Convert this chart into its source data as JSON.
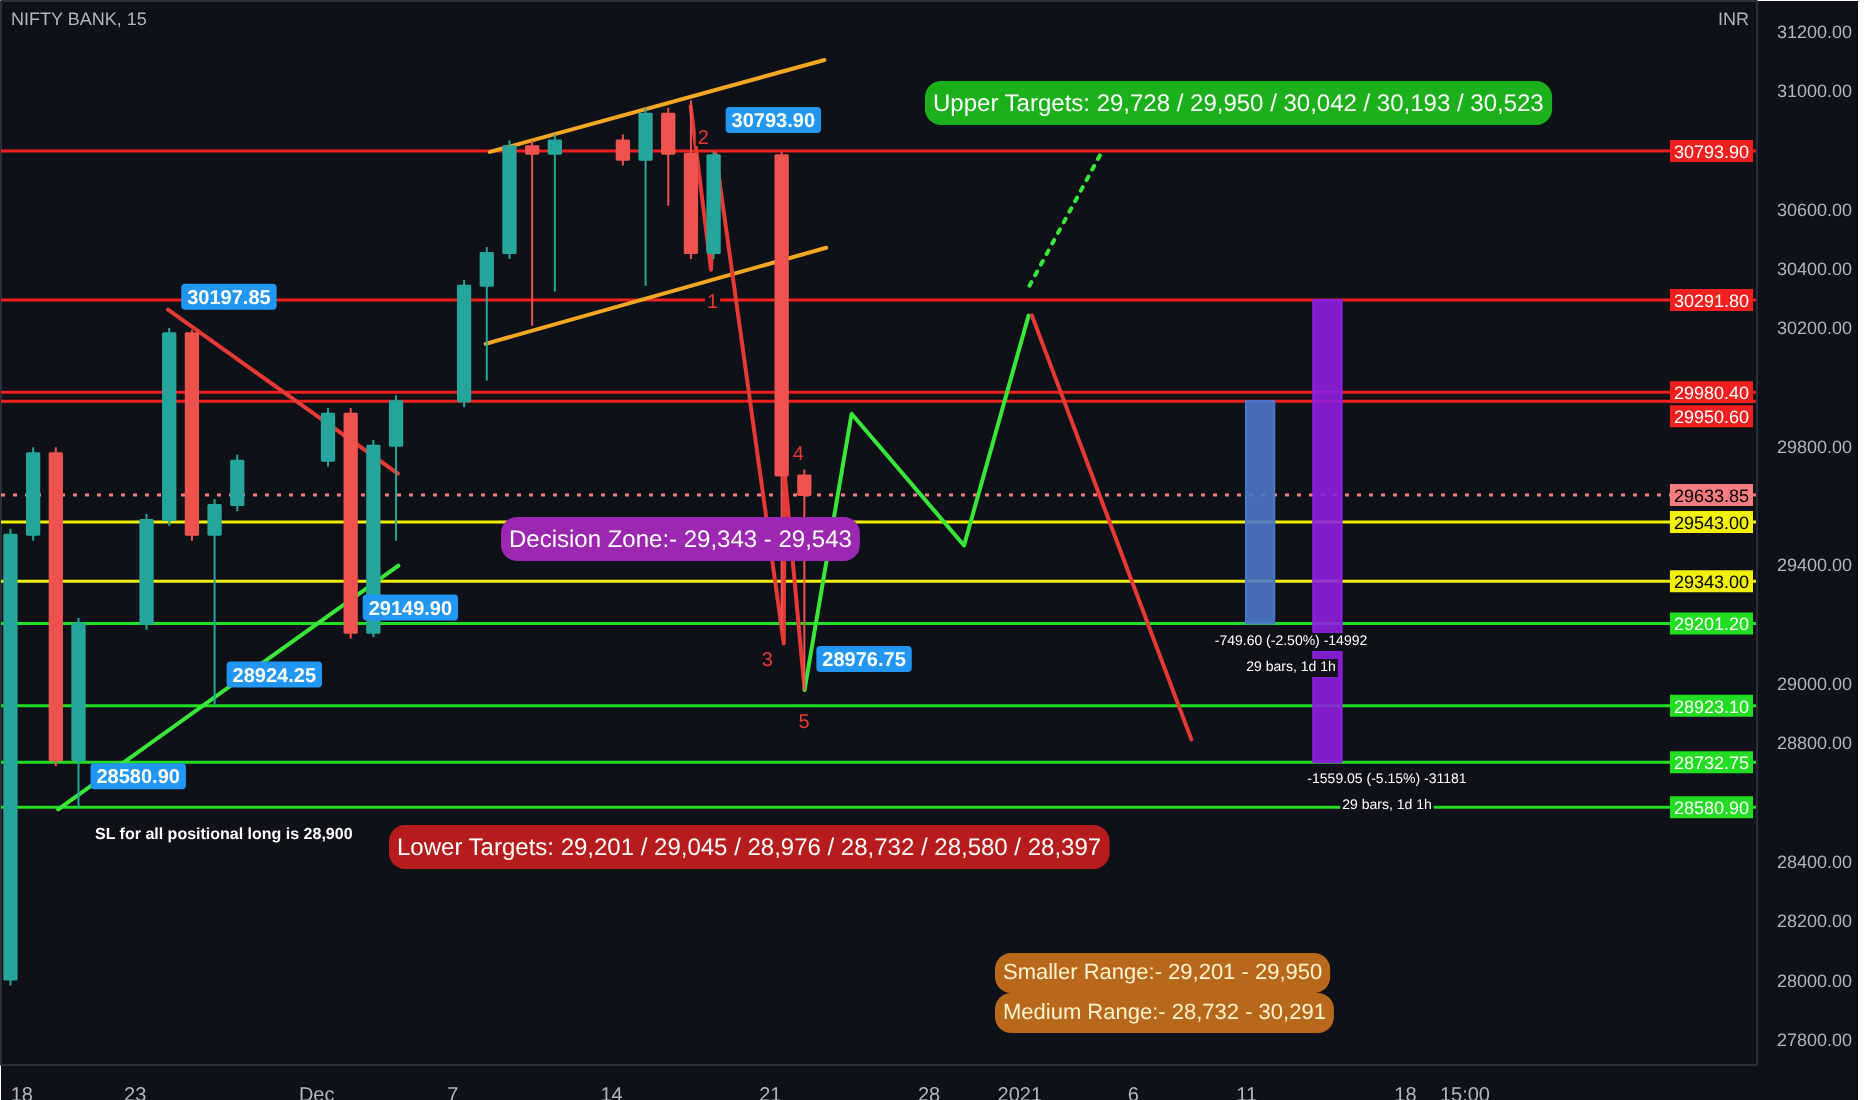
{
  "chart_data": {
    "type": "candlestick",
    "title": "NIFTY BANK, 15",
    "ylabel": "INR",
    "x": [
      "2020-11-17T12:00",
      "2020-11-18T12:00",
      "2020-11-19T12:00",
      "2020-11-20T12:00",
      "2020-11-23T12:00",
      "2020-11-24T12:00",
      "2020-11-25T12:00",
      "2020-11-26T12:00",
      "2020-11-27T12:00",
      "2020-12-01T12:00",
      "2020-12-02T12:00",
      "2020-12-03T12:00",
      "2020-12-04T12:00",
      "2020-12-07T12:00",
      "2020-12-08T12:00",
      "2020-12-09T12:00",
      "2020-12-10T12:00",
      "2020-12-11T12:00",
      "2020-12-14T12:00",
      "2020-12-15T12:00",
      "2020-12-16T12:00",
      "2020-12-17T12:00",
      "2020-12-18T12:00",
      "2020-12-21T12:00",
      "2020-12-22T12:00"
    ],
    "ohlc": [
      [
        28000,
        29520,
        27980,
        29500
      ],
      [
        29500,
        29795,
        29480,
        29775
      ],
      [
        29775,
        29795,
        28720,
        28740
      ],
      [
        28740,
        29220,
        28580.9,
        29200
      ],
      [
        29200,
        29570,
        29180,
        29550
      ],
      [
        29550,
        30197.85,
        29530,
        30180
      ],
      [
        30180,
        30190,
        29480,
        29500
      ],
      [
        29500,
        29620,
        28924.25,
        29600
      ],
      [
        29600,
        29770,
        29580,
        29750
      ],
      [
        29750,
        29928,
        29730,
        29908
      ],
      [
        29908,
        29928,
        29149.9,
        29170
      ],
      [
        29170,
        29820,
        29155,
        29800
      ],
      [
        29800,
        29970,
        29480,
        29950
      ],
      [
        29950,
        30360,
        29930,
        30340
      ],
      [
        30340,
        30470,
        30020,
        30450
      ],
      [
        30450,
        30830,
        30430,
        30810
      ],
      [
        30810,
        30830,
        30205,
        30785
      ],
      [
        30785,
        30850,
        30320,
        30830
      ],
      [
        30830,
        30850,
        30745,
        30765
      ],
      [
        30765,
        30940,
        30340,
        30920
      ],
      [
        30920,
        30940,
        30610,
        30785
      ],
      [
        30785,
        30965,
        30430,
        30450
      ],
      [
        30450,
        30793.9,
        30430,
        30780
      ],
      [
        30780,
        30790,
        29180,
        29700
      ],
      [
        29700,
        29720,
        28976.75,
        29633.85
      ]
    ],
    "series": [
      {
        "type": "line",
        "color": "#f5a623",
        "x": [
          "2020-12-08T15:15",
          "2020-12-23T09:15"
        ],
        "values": [
          30791,
          31101
        ]
      },
      {
        "type": "line",
        "color": "#f5a623",
        "x": [
          "2020-12-08T10:45",
          "2020-12-23T11:15"
        ],
        "values": [
          30144,
          30468
        ]
      },
      {
        "type": "line",
        "color": "#e53935",
        "x": [
          "2020-11-24T10:45",
          "2020-12-04T14:00"
        ],
        "values": [
          30259,
          29706
        ]
      },
      {
        "type": "line",
        "color": "#39e639",
        "x": [
          "2020-11-19T14:30",
          "2020-12-04T14:30"
        ],
        "values": [
          28574,
          29396
        ]
      },
      {
        "type": "line",
        "color": "#e53935",
        "x": [
          "2020-12-17T11:45",
          "2020-12-18T09:15",
          "2020-12-18T14:15",
          "2020-12-21T14:15",
          "2020-12-21T15:15",
          "2020-12-22T12:15"
        ],
        "values": [
          30945,
          30394,
          30784,
          29133,
          29706,
          28977
        ]
      },
      {
        "type": "line",
        "color": "#39e639",
        "x": [
          "2020-12-22T12:15",
          "2020-12-24T14:00",
          "2020-12-29T13:00",
          "2021-01-01T09:15"
        ],
        "values": [
          28977,
          29908,
          29464,
          30239
        ]
      },
      {
        "type": "line",
        "color": "#39e639",
        "line_style": "dotted",
        "x": [
          "2021-01-01T10:15",
          "2021-01-04T13:30"
        ],
        "values": [
          30340,
          30784
        ]
      },
      {
        "type": "line",
        "color": "#e53935",
        "x": [
          "2021-01-01T12:45",
          "2021-01-08T13:30"
        ],
        "values": [
          30240,
          28810
        ]
      },
      {
        "type": "bar",
        "color": "#4a78c8",
        "x": [
          "2021-01-11T14:15"
        ],
        "base": [
          29201
        ],
        "values": [
          750
        ]
      },
      {
        "type": "bar",
        "color": "#8e1ee0",
        "x": [
          "2021-01-14T13:30"
        ],
        "base": [
          28733
        ],
        "values": [
          1559
        ]
      }
    ],
    "ref_lines": [
      {
        "axis": "y",
        "value": 30793.9,
        "label": "30793.90",
        "color": "#f21f1f"
      },
      {
        "axis": "y",
        "value": 30291.8,
        "label": "30291.80",
        "color": "#f21f1f"
      },
      {
        "axis": "y",
        "value": 29980.4,
        "label": "29980.40",
        "color": "#f21f1f"
      },
      {
        "axis": "y",
        "value": 29950.6,
        "label": "29950.60",
        "color": "#f21f1f"
      },
      {
        "axis": "y",
        "value": 29633.85,
        "label": "29633.85",
        "color": "#f77c80",
        "line_style": "dotted"
      },
      {
        "axis": "y",
        "value": 29543,
        "label": "29543.00",
        "color": "#f0f000"
      },
      {
        "axis": "y",
        "value": 29343,
        "label": "29343.00",
        "color": "#f0f000"
      },
      {
        "axis": "y",
        "value": 29201.2,
        "label": "29201.20",
        "color": "#22dd22"
      },
      {
        "axis": "y",
        "value": 28923.1,
        "label": "28923.10",
        "color": "#22dd22"
      },
      {
        "axis": "y",
        "value": 28732.75,
        "label": "28732.75",
        "color": "#22dd22"
      },
      {
        "axis": "y",
        "value": 28580.9,
        "label": "28580.90",
        "color": "#22dd22"
      }
    ],
    "annotations": [
      "Upper Targets: 29,728 / 29,950 / 30,042 / 30,193 / 30,523",
      "Decision Zone:- 29,343 - 29,543",
      "Lower Targets: 29,201 / 29,045 / 28,976 / 28,732 / 28,580 / 28,397",
      "SL for all positional long is 28,900",
      "-749.60 (-2.50%) -14992",
      "29 bars, 1d 1h",
      "-1559.05 (-5.15%) -31181",
      "29 bars, 1d 1h",
      "Smaller Range:- 29,201 - 29,950",
      "Medium Range:- 28,732 - 30,291",
      {
        "text": "30197.85",
        "x": "2020-11-24T12:00",
        "y": 30197.85
      },
      {
        "text": "30793.90",
        "x": "2020-12-18T12:00",
        "y": 30793.9
      },
      {
        "text": "29149.90",
        "x": "2020-12-02T12:00",
        "y": 29149.9
      },
      {
        "text": "28924.25",
        "x": "2020-11-26T12:00",
        "y": 28924.25
      },
      {
        "text": "28580.90",
        "x": "2020-11-20T12:00",
        "y": 28580.9
      },
      {
        "text": "28976.75",
        "x": "2020-12-22T12:00",
        "y": 28976.75
      },
      {
        "text": "1",
        "x": "2020-12-18T09:15",
        "y": 30394
      },
      {
        "text": "2",
        "x": "2020-12-18T14:15",
        "y": 30784
      },
      {
        "text": "3",
        "x": "2020-12-21T14:15",
        "y": 29133
      },
      {
        "text": "4",
        "x": "2020-12-21T15:15",
        "y": 29706
      },
      {
        "text": "5",
        "x": "2020-12-22T12:15",
        "y": 28977
      }
    ],
    "xlim": [
      "2020-11-17T02:00",
      "2021-02-02T12:00"
    ],
    "ylim": [
      27712,
      31300
    ],
    "xticks": [
      {
        "value": "2020-11-18",
        "label": "18"
      },
      {
        "value": "2020-11-23",
        "label": "23"
      },
      {
        "value": "2020-12-01",
        "label": "Dec"
      },
      {
        "value": "2020-12-07",
        "label": "7"
      },
      {
        "value": "2020-12-14",
        "label": "14"
      },
      {
        "value": "2020-12-21",
        "label": "21"
      },
      {
        "value": "2020-12-28",
        "label": "28"
      },
      {
        "value": "2021-01-01",
        "label": "2021"
      },
      {
        "value": "2021-01-06",
        "label": "6"
      },
      {
        "value": "2021-01-11",
        "label": "11"
      },
      {
        "value": "2021-01-18",
        "label": "18"
      },
      {
        "value": "2021-01-20T15:00",
        "label": "15:00"
      }
    ],
    "yticks": [
      {
        "value": 27800,
        "label": "27800.00"
      },
      {
        "value": 28000,
        "label": "28000.00"
      },
      {
        "value": 28200,
        "label": "28200.00"
      },
      {
        "value": 28400,
        "label": "28400.00"
      },
      {
        "value": 28800,
        "label": "28800.00"
      },
      {
        "value": 29000,
        "label": "29000.00"
      },
      {
        "value": 29400,
        "label": "29400.00"
      },
      {
        "value": 29800,
        "label": "29800.00"
      },
      {
        "value": 30200,
        "label": "30200.00"
      },
      {
        "value": 30400,
        "label": "30400.00"
      },
      {
        "value": 30600,
        "label": "30600.00"
      },
      {
        "value": 31000,
        "label": "31000.00"
      },
      {
        "value": 31200,
        "label": "31200.00"
      }
    ],
    "grid": false
  }
}
